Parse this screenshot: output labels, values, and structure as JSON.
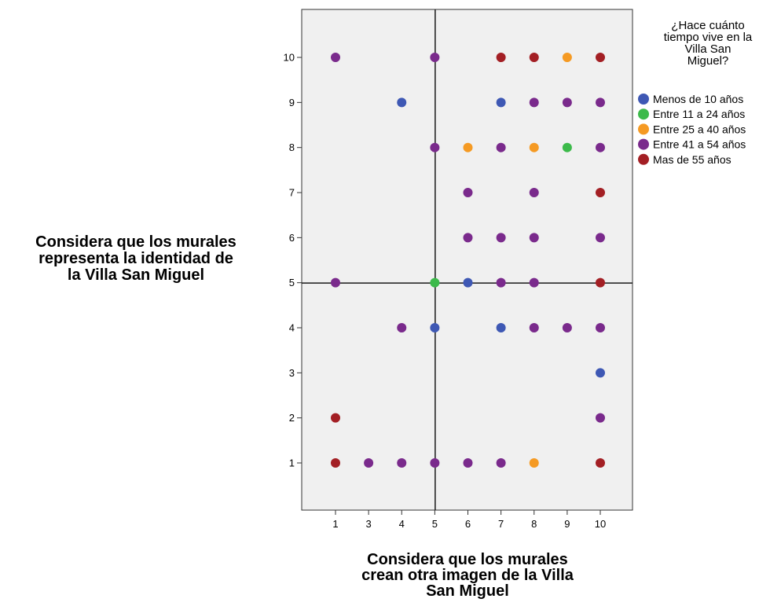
{
  "chart_data": {
    "type": "scatter",
    "title": "",
    "xlabel": "Considera que los murales crean otra imagen de la  Villa San Miguel",
    "ylabel": "Considera que los murales representa la identidad de la  Villa San Miguel",
    "x_categories": [
      "1",
      "3",
      "4",
      "5",
      "6",
      "7",
      "8",
      "9",
      "10"
    ],
    "y_ticks": [
      "1",
      "2",
      "3",
      "4",
      "5",
      "6",
      "7",
      "8",
      "9",
      "10"
    ],
    "reference_lines": {
      "x": "5",
      "y": 5
    },
    "grid": false,
    "legend_position": "right",
    "legend_title": "¿Hace cuánto tiempo vive en la Villa San Miguel?",
    "series": [
      {
        "name": "Menos de 10 años",
        "color": "#3e58b4",
        "points": [
          [
            "4",
            9
          ],
          [
            "7",
            9
          ],
          [
            "6",
            5
          ],
          [
            "5",
            4
          ],
          [
            "7",
            4
          ],
          [
            "10",
            3
          ]
        ]
      },
      {
        "name": "Entre 11 a 24 años",
        "color": "#3cba4a",
        "points": [
          [
            "9",
            8
          ],
          [
            "5",
            5
          ]
        ]
      },
      {
        "name": "Entre 25 a 40 años",
        "color": "#f59a23",
        "points": [
          [
            "9",
            10
          ],
          [
            "6",
            8
          ],
          [
            "8",
            8
          ],
          [
            "8",
            1
          ]
        ]
      },
      {
        "name": "Entre 41 a 54 años",
        "color": "#7a2a8c",
        "points": [
          [
            "1",
            10
          ],
          [
            "5",
            10
          ],
          [
            "8",
            9
          ],
          [
            "9",
            9
          ],
          [
            "10",
            9
          ],
          [
            "5",
            8
          ],
          [
            "7",
            8
          ],
          [
            "10",
            8
          ],
          [
            "6",
            7
          ],
          [
            "8",
            7
          ],
          [
            "6",
            6
          ],
          [
            "7",
            6
          ],
          [
            "8",
            6
          ],
          [
            "10",
            6
          ],
          [
            "1",
            5
          ],
          [
            "7",
            5
          ],
          [
            "8",
            5
          ],
          [
            "4",
            4
          ],
          [
            "8",
            4
          ],
          [
            "9",
            4
          ],
          [
            "10",
            4
          ],
          [
            "10",
            2
          ],
          [
            "3",
            1
          ],
          [
            "4",
            1
          ],
          [
            "5",
            1
          ],
          [
            "6",
            1
          ],
          [
            "7",
            1
          ]
        ]
      },
      {
        "name": "Mas de 55 años",
        "color": "#a31f24",
        "points": [
          [
            "7",
            10
          ],
          [
            "8",
            10
          ],
          [
            "10",
            10
          ],
          [
            "10",
            7
          ],
          [
            "10",
            5
          ],
          [
            "1",
            2
          ],
          [
            "1",
            1
          ],
          [
            "10",
            1
          ]
        ]
      }
    ]
  }
}
